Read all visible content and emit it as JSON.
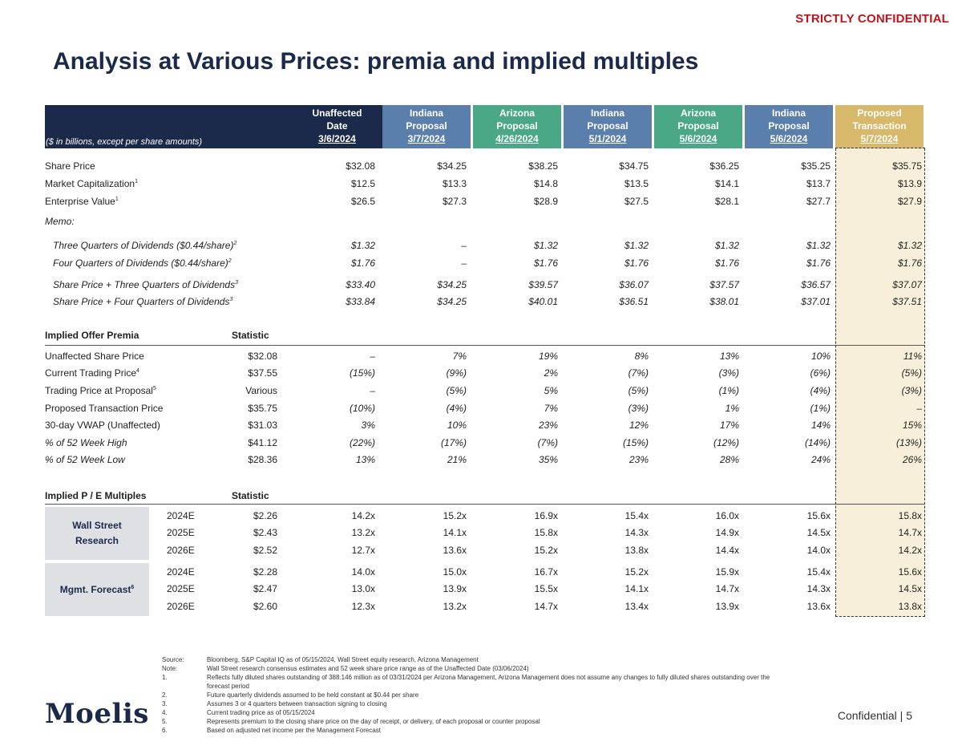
{
  "confidential_banner": "STRICTLY CONFIDENTIAL",
  "title": "Analysis at Various Prices: premia and implied multiples",
  "units_note": "($ in billions, except per share amounts)",
  "columns": [
    {
      "l1": "Unaffected",
      "l2": "Date",
      "date": "3/6/2024",
      "color": "#1b2a4a"
    },
    {
      "l1": "Indiana",
      "l2": "Proposal",
      "date": "3/7/2024",
      "color": "#5b7fad"
    },
    {
      "l1": "Arizona",
      "l2": "Proposal",
      "date": "4/26/2024",
      "color": "#4aa886"
    },
    {
      "l1": "Indiana",
      "l2": "Proposal",
      "date": "5/1/2024",
      "color": "#5b7fad"
    },
    {
      "l1": "Arizona",
      "l2": "Proposal",
      "date": "5/6/2024",
      "color": "#4aa886"
    },
    {
      "l1": "Indiana",
      "l2": "Proposal",
      "date": "5/6/2024",
      "color": "#5b7fad"
    },
    {
      "l1": "Proposed",
      "l2": "Transaction",
      "date": "5/7/2024",
      "color": "#d8b86a"
    }
  ],
  "top_rows": [
    {
      "label": "Share Price",
      "sup": "",
      "italic": false,
      "values": [
        "$32.08",
        "$34.25",
        "$38.25",
        "$34.75",
        "$36.25",
        "$35.25",
        "$35.75"
      ]
    },
    {
      "label": "Market Capitalization",
      "sup": "1",
      "italic": false,
      "values": [
        "$12.5",
        "$13.3",
        "$14.8",
        "$13.5",
        "$14.1",
        "$13.7",
        "$13.9"
      ]
    },
    {
      "label": "Enterprise Value",
      "sup": "1",
      "italic": false,
      "values": [
        "$26.5",
        "$27.3",
        "$28.9",
        "$27.5",
        "$28.1",
        "$27.7",
        "$27.9"
      ]
    }
  ],
  "memo_label": "Memo:",
  "memo_rows": [
    {
      "label": "Three Quarters of Dividends ($0.44/share)",
      "sup": "2",
      "values": [
        "$1.32",
        "–",
        "$1.32",
        "$1.32",
        "$1.32",
        "$1.32",
        "$1.32"
      ]
    },
    {
      "label": "Four Quarters of Dividends ($0.44/share)",
      "sup": "2",
      "values": [
        "$1.76",
        "–",
        "$1.76",
        "$1.76",
        "$1.76",
        "$1.76",
        "$1.76"
      ]
    },
    {
      "label": "Share Price + Three Quarters of Dividends",
      "sup": "3",
      "values": [
        "$33.40",
        "$34.25",
        "$39.57",
        "$36.07",
        "$37.57",
        "$36.57",
        "$37.07"
      ]
    },
    {
      "label": "Share Price + Four Quarters of Dividends",
      "sup": "3",
      "values": [
        "$33.84",
        "$34.25",
        "$40.01",
        "$36.51",
        "$38.01",
        "$37.01",
        "$37.51"
      ]
    }
  ],
  "premia_header": {
    "label": "Implied Offer Premia",
    "statistic": "Statistic"
  },
  "premia_rows": [
    {
      "label": "Unaffected Share Price",
      "sup": "",
      "italic": false,
      "stat": "$32.08",
      "values": [
        "–",
        "7%",
        "19%",
        "8%",
        "13%",
        "10%",
        "11%"
      ]
    },
    {
      "label": "Current Trading Price",
      "sup": "4",
      "italic": false,
      "stat": "$37.55",
      "values": [
        "(15%)",
        "(9%)",
        "2%",
        "(7%)",
        "(3%)",
        "(6%)",
        "(5%)"
      ]
    },
    {
      "label": "Trading Price at Proposal",
      "sup": "5",
      "italic": false,
      "stat": "Various",
      "values": [
        "–",
        "(5%)",
        "5%",
        "(5%)",
        "(1%)",
        "(4%)",
        "(3%)"
      ]
    },
    {
      "label": "Proposed Transaction Price",
      "sup": "",
      "italic": false,
      "stat": "$35.75",
      "values": [
        "(10%)",
        "(4%)",
        "7%",
        "(3%)",
        "1%",
        "(1%)",
        "–"
      ]
    },
    {
      "label": "30-day VWAP (Unaffected)",
      "sup": "",
      "italic": false,
      "stat": "$31.03",
      "values": [
        "3%",
        "10%",
        "23%",
        "12%",
        "17%",
        "14%",
        "15%"
      ]
    },
    {
      "label": "% of 52 Week High",
      "sup": "",
      "italic": true,
      "stat": "$41.12",
      "values": [
        "(22%)",
        "(17%)",
        "(7%)",
        "(15%)",
        "(12%)",
        "(14%)",
        "(13%)"
      ]
    },
    {
      "label": "% of 52 Week Low",
      "sup": "",
      "italic": true,
      "stat": "$28.36",
      "values": [
        "13%",
        "21%",
        "35%",
        "23%",
        "28%",
        "24%",
        "26%"
      ]
    }
  ],
  "pe_header": {
    "label": "Implied P / E Multiples",
    "statistic": "Statistic"
  },
  "pe_groups": [
    {
      "name_l1": "Wall Street",
      "name_l2": "Research",
      "sup": "",
      "rows": [
        {
          "year": "2024E",
          "stat": "$2.26",
          "values": [
            "14.2x",
            "15.2x",
            "16.9x",
            "15.4x",
            "16.0x",
            "15.6x",
            "15.8x"
          ]
        },
        {
          "year": "2025E",
          "stat": "$2.43",
          "values": [
            "13.2x",
            "14.1x",
            "15.8x",
            "14.3x",
            "14.9x",
            "14.5x",
            "14.7x"
          ]
        },
        {
          "year": "2026E",
          "stat": "$2.52",
          "values": [
            "12.7x",
            "13.6x",
            "15.2x",
            "13.8x",
            "14.4x",
            "14.0x",
            "14.2x"
          ]
        }
      ]
    },
    {
      "name_l1": "Mgmt. Forecast",
      "name_l2": "",
      "sup": "6",
      "rows": [
        {
          "year": "2024E",
          "stat": "$2.28",
          "values": [
            "14.0x",
            "15.0x",
            "16.7x",
            "15.2x",
            "15.9x",
            "15.4x",
            "15.6x"
          ]
        },
        {
          "year": "2025E",
          "stat": "$2.47",
          "values": [
            "13.0x",
            "13.9x",
            "15.5x",
            "14.1x",
            "14.7x",
            "14.3x",
            "14.5x"
          ]
        },
        {
          "year": "2026E",
          "stat": "$2.60",
          "values": [
            "12.3x",
            "13.2x",
            "14.7x",
            "13.4x",
            "13.9x",
            "13.6x",
            "13.8x"
          ]
        }
      ]
    }
  ],
  "footnotes": [
    {
      "key": "Source:",
      "text": "Bloomberg, S&P Capital IQ as of 05/15/2024, Wall Street equity research, Arizona Management"
    },
    {
      "key": "Note:",
      "text": "Wall Street research consensus estimates and 52 week share price range as of the Unaffected Date (03/06/2024)"
    },
    {
      "key": "1.",
      "text": "Reflects fully diluted shares outstanding of 388.146 million as of 03/31/2024 per Arizona Management, Arizona Management does not assume any changes to fully diluted shares outstanding over the"
    },
    {
      "key": "",
      "text": "forecast period"
    },
    {
      "key": "2.",
      "text": "Future quarterly dividends assumed to be held constant at $0.44 per share"
    },
    {
      "key": "3.",
      "text": "Assumes 3 or 4 quarters between transaction signing to closing"
    },
    {
      "key": "4.",
      "text": "Current trading price as of 05/15/2024"
    },
    {
      "key": "5.",
      "text": "Represents premium to the closing share price on the day of receipt, or delivery, of each proposal or counter proposal"
    },
    {
      "key": "6.",
      "text": "Based on adjusted net income per the Management Forecast"
    }
  ],
  "logo_text": "Moelis",
  "page_footer": "Confidential  |  5"
}
